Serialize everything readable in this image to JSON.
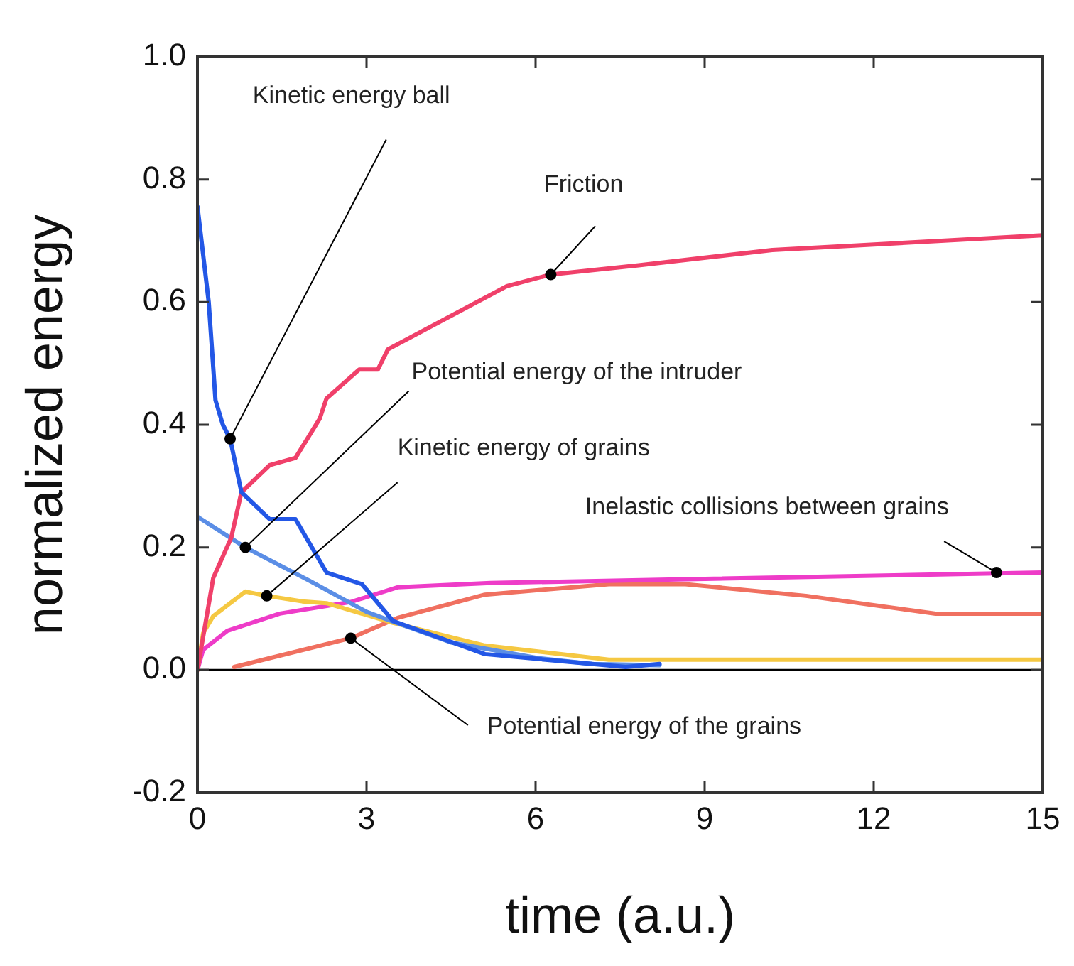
{
  "chart_data": {
    "type": "line",
    "xlabel": "time (a.u.)",
    "ylabel": "normalized energy",
    "xlim": [
      0,
      15
    ],
    "ylim": [
      -0.2,
      1.0
    ],
    "xticks": [
      0,
      3,
      6,
      9,
      12,
      15
    ],
    "yticks": [
      {
        "value": -0.2,
        "label": "-0.2"
      },
      {
        "value": 0,
        "label": "0.0"
      },
      {
        "value": 0.2,
        "label": "0.2"
      },
      {
        "value": 0.4,
        "label": "0.4"
      },
      {
        "value": 0.6,
        "label": "0.6"
      },
      {
        "value": 0.8,
        "label": "0.8"
      },
      {
        "value": 1.0,
        "label": "1.0"
      }
    ],
    "marker": "none",
    "line_style": "solid",
    "series": [
      {
        "color": "#2357e6",
        "x": [
          0,
          0.2,
          0.32,
          0.45,
          0.58,
          0.78,
          1.28,
          1.74,
          2.29,
          2.92,
          3.47,
          5.1,
          7.6,
          8.2
        ],
        "values": [
          0.756,
          0.6,
          0.44,
          0.4,
          0.377,
          0.29,
          0.246,
          0.246,
          0.159,
          0.14,
          0.08,
          0.026,
          0.005,
          0.01
        ]
      },
      {
        "color": "#f0406a",
        "x": [
          0,
          0.28,
          0.6,
          0.78,
          1.28,
          1.74,
          2.17,
          2.29,
          2.87,
          3.2,
          3.38,
          5.49,
          6.27,
          7.83,
          10.2,
          15
        ],
        "values": [
          0,
          0.15,
          0.216,
          0.29,
          0.334,
          0.346,
          0.41,
          0.443,
          0.49,
          0.49,
          0.523,
          0.626,
          0.645,
          0.66,
          0.685,
          0.709
        ]
      },
      {
        "color": "#5b8ee6",
        "x": [
          0,
          0.85,
          2,
          3,
          3.5,
          4.5,
          6,
          7,
          8.2
        ],
        "values": [
          0.25,
          0.2,
          0.145,
          0.095,
          0.078,
          0.045,
          0.02,
          0.01,
          0.008
        ]
      },
      {
        "color": "#f5c842",
        "x": [
          0,
          0.1,
          0.28,
          0.85,
          1.23,
          1.86,
          2.29,
          3.47,
          5.1,
          7.3,
          15
        ],
        "values": [
          0,
          0.06,
          0.088,
          0.128,
          0.121,
          0.112,
          0.109,
          0.077,
          0.04,
          0.017,
          0.017
        ]
      },
      {
        "color": "#ee3cc8",
        "x": [
          0,
          0.1,
          0.53,
          1.46,
          2.72,
          3.55,
          5.2,
          15
        ],
        "values": [
          0,
          0.033,
          0.064,
          0.092,
          0.111,
          0.135,
          0.142,
          0.159
        ]
      },
      {
        "color": "#f07060",
        "x": [
          0.65,
          2.72,
          3.55,
          5.1,
          7.3,
          8.66,
          10.8,
          13.1,
          15
        ],
        "values": [
          0.005,
          0.052,
          0.085,
          0.123,
          0.14,
          0.14,
          0.121,
          0.092,
          0.092
        ]
      }
    ],
    "ref_lines": [
      {
        "axis": "y",
        "value": 0,
        "color": "#000000"
      }
    ],
    "annotations": [
      {
        "text": "Kinetic energy ball",
        "x": 0.58,
        "y": 0.377
      },
      {
        "text": "Friction",
        "x": 6.27,
        "y": 0.645
      },
      {
        "text": "Potential energy of the intruder",
        "x": 0.85,
        "y": 0.2
      },
      {
        "text": "Kinetic energy of grains",
        "x": 1.23,
        "y": 0.121
      },
      {
        "text": "Inelastic collisions between grains",
        "x": 14.18,
        "y": 0.159
      },
      {
        "text": "Potential energy of the grains",
        "x": 2.72,
        "y": 0.052
      }
    ]
  }
}
